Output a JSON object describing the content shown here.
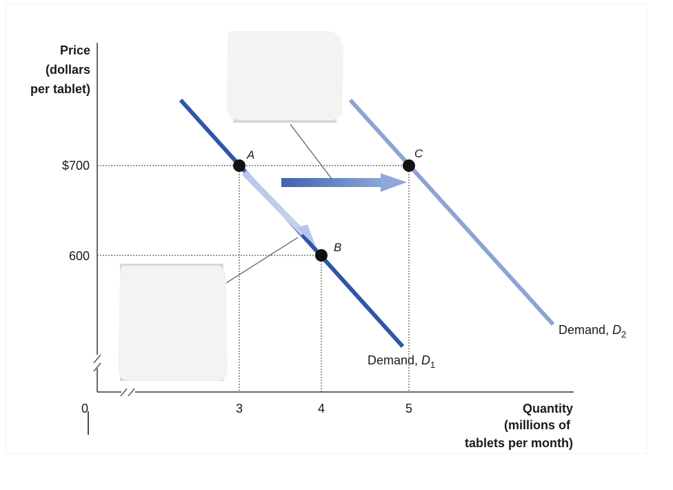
{
  "chart_data": {
    "type": "line",
    "ylabel": [
      "Price",
      "(dollars",
      "per tablet)"
    ],
    "xlabel": [
      "Quantity",
      "(millions of",
      "tablets per month)"
    ],
    "origin_label": "0",
    "x_ticks": [
      {
        "value": 3,
        "label": "3"
      },
      {
        "value": 4,
        "label": "4"
      },
      {
        "value": 5,
        "label": "5"
      }
    ],
    "y_ticks": [
      {
        "value": 700,
        "label": "$700"
      },
      {
        "value": 600,
        "label": "600"
      }
    ],
    "series": [
      {
        "name": "Demand, D1",
        "label_main": "Demand, ",
        "label_var": "D",
        "label_sub": "1",
        "color": "#2f57a8",
        "points": [
          {
            "x": 3,
            "y": 700
          },
          {
            "x": 4,
            "y": 600
          }
        ]
      },
      {
        "name": "Demand, D2",
        "label_main": "Demand, ",
        "label_var": "D",
        "label_sub": "2",
        "color": "#8fa3d3",
        "points": [
          {
            "x": 5,
            "y": 700
          }
        ]
      }
    ],
    "points": [
      {
        "label": "A",
        "x": 3,
        "y": 700
      },
      {
        "label": "B",
        "x": 4,
        "y": 600
      },
      {
        "label": "C",
        "x": 5,
        "y": 700
      }
    ],
    "colors": {
      "d1": "#2f57a8",
      "d2": "#8fa3d3",
      "arrow": "#4a70bb",
      "axis": "#333333",
      "box": "#f3f3f1"
    }
  }
}
